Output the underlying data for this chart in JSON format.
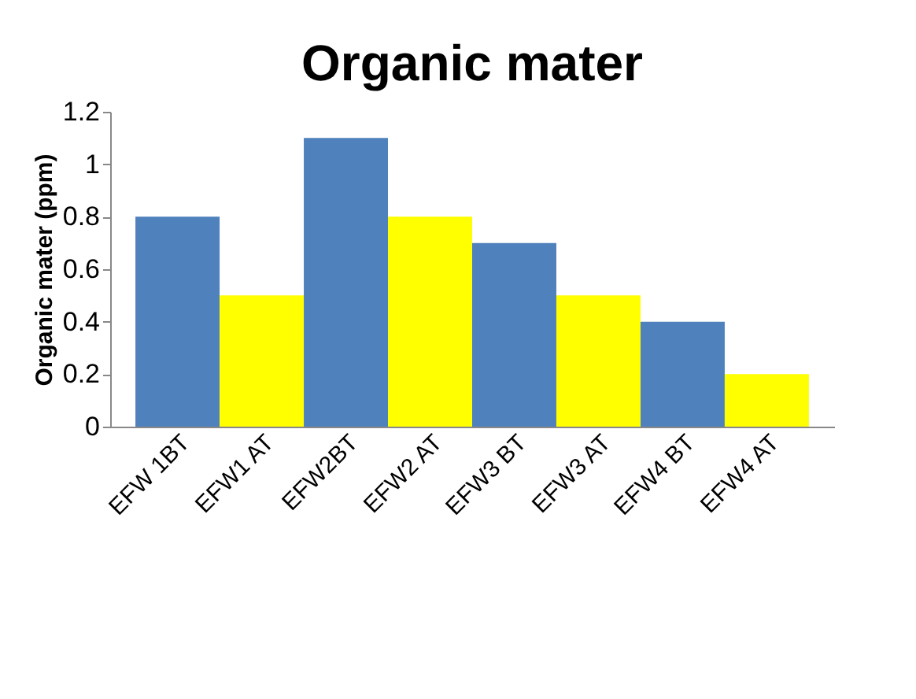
{
  "chart_data": {
    "type": "bar",
    "title": "Organic mater",
    "ylabel": "Organic mater (ppm)",
    "categories": [
      "EFW 1BT",
      "EFW1 AT",
      "EFW2BT",
      "EFW2 AT",
      "EFW3 BT",
      "EFW3 AT",
      "EFW4 BT",
      "EFW4 AT"
    ],
    "values": [
      0.8,
      0.5,
      1.1,
      0.8,
      0.7,
      0.5,
      0.4,
      0.2
    ],
    "colors": [
      "#4f81bd",
      "#ffff00",
      "#4f81bd",
      "#ffff00",
      "#4f81bd",
      "#ffff00",
      "#4f81bd",
      "#ffff00"
    ],
    "ylim": [
      0,
      1.2
    ],
    "yticks": [
      0,
      0.2,
      0.4,
      0.6,
      0.8,
      1,
      1.2
    ],
    "grid": false,
    "legend": false
  }
}
